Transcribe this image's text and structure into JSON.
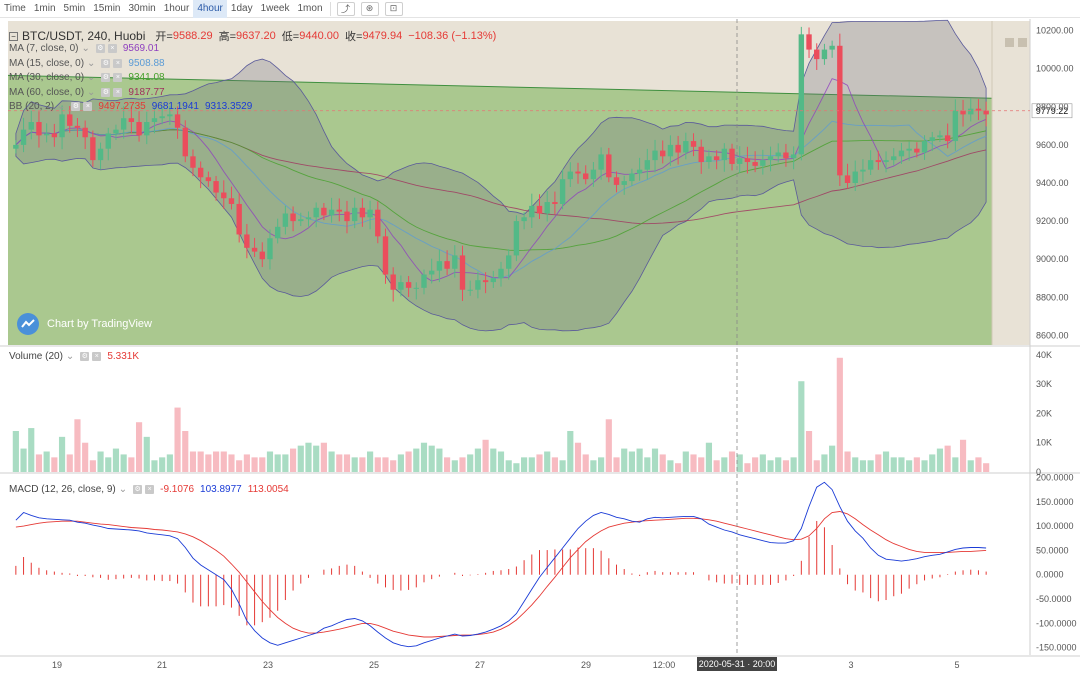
{
  "toolbar": {
    "items": [
      "Time",
      "1min",
      "5min",
      "15min",
      "30min",
      "1hour",
      "4hour",
      "1day",
      "1week",
      "1mon"
    ],
    "active": "4hour",
    "icons": [
      "chart-type-icon",
      "indicators-icon",
      "settings-icon"
    ]
  },
  "header": {
    "title": "BTC/USDT, 240, Huobi",
    "open_label": "开=",
    "open": "9588.29",
    "high_label": "高=",
    "high": "9637.20",
    "low_label": "低=",
    "low": "9440.00",
    "close_label": "收=",
    "close": "9479.94",
    "change": "−108.36 (−1.13%)"
  },
  "indicators": [
    {
      "label": "MA (7, close, 0)",
      "value": "9569.01",
      "color": "#8e3fbf"
    },
    {
      "label": "MA (15, close, 0)",
      "value": "9508.88",
      "color": "#5b9bd5"
    },
    {
      "label": "MA (30, close, 0)",
      "value": "9341.08",
      "color": "#45a02a"
    },
    {
      "label": "MA (60, close, 0)",
      "value": "9187.77",
      "color": "#a0315e"
    },
    {
      "label": "BB (20, 2)",
      "values": [
        "9497.2735",
        "9681.1941",
        "9313.3529"
      ],
      "colors": [
        "#e53935",
        "#1a3bd6",
        "#1a3bd6"
      ]
    }
  ],
  "watermark": "Chart by TradingView",
  "volume": {
    "label": "Volume (20)",
    "value": "5.331K"
  },
  "macd": {
    "label": "MACD (12, 26, close, 9)",
    "values": [
      "-9.1076",
      "103.8977",
      "113.0054"
    ],
    "colors": [
      "#e53935",
      "#1a3bd6",
      "#e53935"
    ]
  },
  "price_tag": "9779.22",
  "crosshair_label": "2020-05-31 · 20:00",
  "colors": {
    "up": "#53b987",
    "down": "#eb4d5c",
    "bg_green": "#aac88f",
    "bg_tan": "#e8e2d6"
  },
  "chart_data": {
    "type": "candlestick",
    "price_axis": {
      "ticks": [
        "10200.00",
        "10000.00",
        "9800.00",
        "9600.00",
        "9400.00",
        "9200.00",
        "9000.00",
        "8800.00",
        "8600.00"
      ]
    },
    "volume_axis": {
      "ticks": [
        "40K",
        "30K",
        "20K",
        "10K",
        "0"
      ]
    },
    "macd_axis": {
      "ticks": [
        "200.0000",
        "150.0000",
        "100.0000",
        "50.0000",
        "0.0000",
        "-50.0000",
        "-100.0000",
        "-150.0000"
      ]
    },
    "x_ticks": [
      "19",
      "21",
      "23",
      "25",
      "27",
      "29",
      "12:00",
      "3",
      "5"
    ],
    "closes": [
      9600,
      9680,
      9720,
      9650,
      9660,
      9640,
      9760,
      9700,
      9690,
      9640,
      9520,
      9580,
      9660,
      9680,
      9740,
      9720,
      9650,
      9720,
      9740,
      9750,
      9760,
      9690,
      9540,
      9480,
      9430,
      9410,
      9350,
      9320,
      9290,
      9130,
      9060,
      9040,
      9000,
      9110,
      9170,
      9240,
      9200,
      9210,
      9220,
      9270,
      9230,
      9260,
      9250,
      9200,
      9270,
      9220,
      9260,
      9120,
      8920,
      8840,
      8880,
      8850,
      8850,
      8920,
      8940,
      8990,
      8950,
      9020,
      8840,
      8840,
      8890,
      8880,
      8900,
      8950,
      9020,
      9200,
      9220,
      9280,
      9240,
      9300,
      9290,
      9420,
      9460,
      9450,
      9420,
      9470,
      9550,
      9430,
      9390,
      9410,
      9450,
      9470,
      9520,
      9570,
      9540,
      9600,
      9560,
      9620,
      9590,
      9510,
      9540,
      9520,
      9580,
      9500,
      9530,
      9510,
      9490,
      9520,
      9540,
      9560,
      9530,
      9550,
      10180,
      10100,
      10050,
      10100,
      10120,
      9440,
      9400,
      9460,
      9470,
      9520,
      9510,
      9520,
      9540,
      9570,
      9580,
      9560,
      9620,
      9640,
      9650,
      9620,
      9780,
      9760,
      9790,
      9780,
      9760
    ],
    "volume": [
      14,
      8,
      15,
      6,
      7,
      5,
      12,
      6,
      18,
      10,
      4,
      7,
      5,
      8,
      6,
      5,
      17,
      12,
      4,
      5,
      6,
      22,
      14,
      7,
      7,
      6,
      7,
      7,
      6,
      4,
      6,
      5,
      5,
      7,
      6,
      6,
      8,
      9,
      10,
      9,
      10,
      7,
      6,
      6,
      5,
      5,
      7,
      5,
      5,
      4,
      6,
      7,
      8,
      10,
      9,
      8,
      5,
      4,
      5,
      6,
      8,
      11,
      8,
      7,
      4,
      3,
      5,
      5,
      6,
      7,
      5,
      4,
      14,
      10,
      6,
      4,
      5,
      18,
      5,
      8,
      7,
      8,
      5,
      8,
      6,
      4,
      3,
      7,
      6,
      5,
      10,
      4,
      5,
      7,
      6,
      3,
      5,
      6,
      4,
      5,
      4,
      5,
      31,
      14,
      4,
      6,
      9,
      39,
      7,
      5,
      4,
      4,
      6,
      7,
      5,
      5,
      4,
      5,
      4,
      6,
      8,
      9,
      5,
      11,
      4,
      5,
      3
    ],
    "macd_line": [
      112,
      128,
      122,
      117,
      115,
      114,
      113,
      112,
      108,
      106,
      102,
      99,
      95,
      94,
      93,
      92,
      90,
      86,
      84,
      82,
      80,
      74,
      56,
      34,
      20,
      10,
      0,
      -10,
      -30,
      -60,
      -95,
      -115,
      -130,
      -140,
      -145,
      -140,
      -135,
      -130,
      -125,
      -120,
      -110,
      -105,
      -98,
      -92,
      -90,
      -95,
      -105,
      -118,
      -130,
      -140,
      -145,
      -148,
      -146,
      -140,
      -135,
      -130,
      -126,
      -122,
      -126,
      -125,
      -122,
      -118,
      -112,
      -105,
      -95,
      -80,
      -55,
      -30,
      -5,
      15,
      35,
      55,
      75,
      95,
      110,
      122,
      128,
      124,
      118,
      115,
      110,
      108,
      115,
      118,
      117,
      118,
      119,
      120,
      120,
      115,
      104,
      98,
      92,
      88,
      82,
      78,
      74,
      70,
      66,
      65,
      65,
      70,
      95,
      140,
      180,
      190,
      175,
      140,
      110,
      90,
      75,
      55,
      40,
      32,
      30,
      28,
      30,
      33,
      37,
      40,
      42,
      47,
      52,
      55,
      56,
      56,
      55
    ],
    "signal_line": [
      98,
      100,
      103,
      106,
      108,
      109,
      110,
      110,
      110,
      108,
      106,
      104,
      103,
      101,
      99,
      97,
      96,
      95,
      93,
      92,
      90,
      88,
      84,
      78,
      70,
      60,
      50,
      38,
      22,
      5,
      -15,
      -35,
      -55,
      -72,
      -88,
      -100,
      -110,
      -116,
      -120,
      -120,
      -118,
      -115,
      -112,
      -108,
      -104,
      -100,
      -100,
      -104,
      -110,
      -116,
      -120,
      -124,
      -126,
      -128,
      -128,
      -127,
      -126,
      -125,
      -124,
      -124,
      -123,
      -121,
      -118,
      -112,
      -104,
      -93,
      -78,
      -62,
      -44,
      -24,
      -5,
      15,
      35,
      52,
      68,
      80,
      90,
      98,
      102,
      106,
      108,
      110,
      111,
      112,
      113,
      114,
      115,
      116,
      116,
      115,
      113,
      110,
      106,
      102,
      98,
      94,
      90,
      86,
      82,
      78,
      74,
      72,
      73,
      80,
      95,
      115,
      128,
      130,
      125,
      115,
      103,
      92,
      82,
      72,
      64,
      58,
      52,
      48,
      46,
      46,
      46,
      46,
      47,
      48,
      48,
      49,
      50
    ]
  }
}
